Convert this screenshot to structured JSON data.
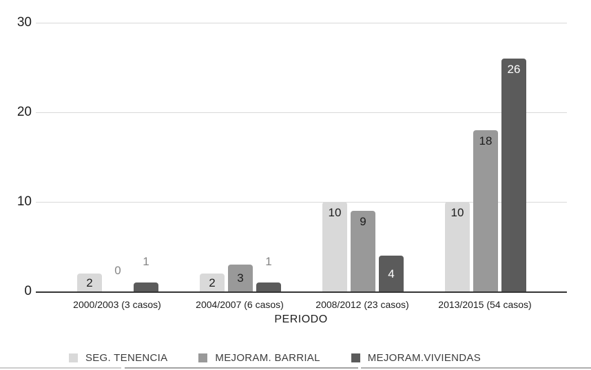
{
  "chart_data": {
    "type": "bar",
    "title": "",
    "xlabel": "PERIODO",
    "ylabel": "",
    "categories": [
      "2000/2003 (3 casos)",
      "2004/2007 (6 casos)",
      "2008/2012 (23 casos)",
      "2013/2015 (54 casos)"
    ],
    "series": [
      {
        "name": "SEG. TENENCIA",
        "color": "#d9d9d9",
        "label_color": "#1c1c1c",
        "values": [
          2,
          2,
          10,
          10
        ]
      },
      {
        "name": "MEJORAM. BARRIAL",
        "color": "#999999",
        "label_color": "#1c1c1c",
        "values": [
          0,
          3,
          9,
          18
        ]
      },
      {
        "name": "MEJORAM.VIVIENDAS",
        "color": "#5b5b5b",
        "label_color": "#ffffff",
        "values": [
          1,
          1,
          4,
          26
        ]
      }
    ],
    "y_ticks": [
      0,
      10,
      20,
      30
    ],
    "ylim": [
      0,
      30
    ],
    "grid": true,
    "legend_position": "bottom",
    "outside_label_color": "#858585",
    "outside_label_max_value": 1
  }
}
